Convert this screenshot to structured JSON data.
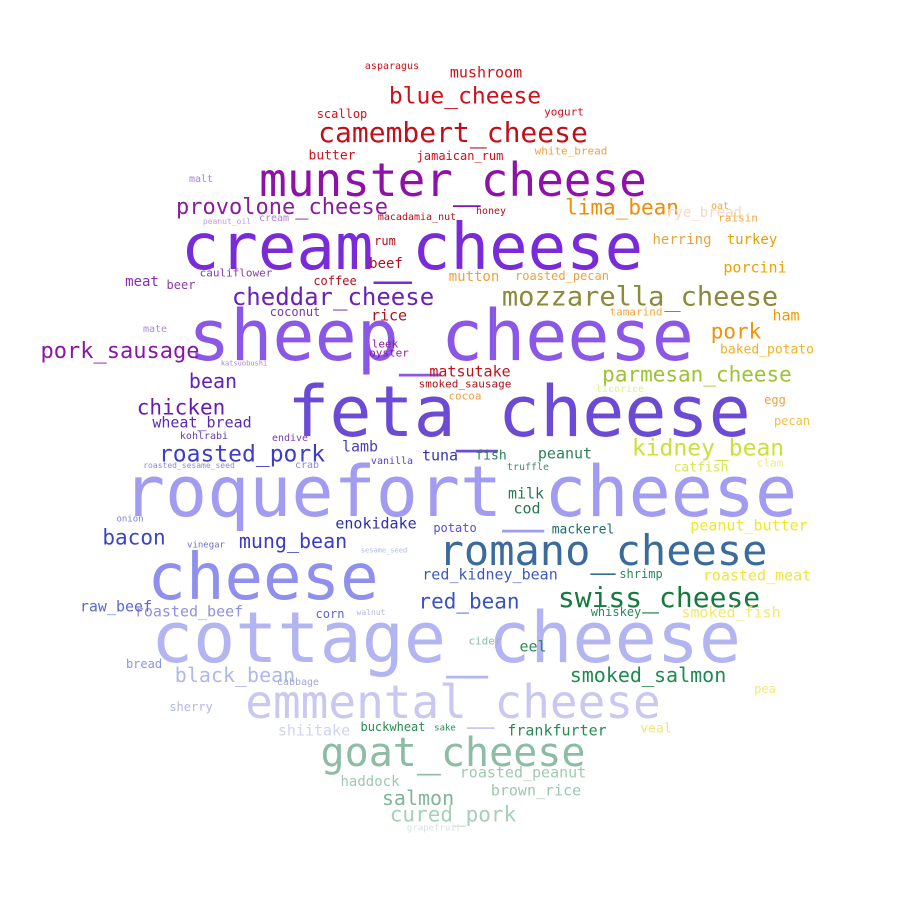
{
  "words": [
    {
      "text": "roquefort_cheese",
      "color": "#a29bf2"
    },
    {
      "text": "cottage_cheese",
      "color": "#b3b4f2"
    },
    {
      "text": "sheep_cheese",
      "color": "#8a57e6"
    },
    {
      "text": "feta_cheese",
      "color": "#6c4bd4"
    },
    {
      "text": "cream_cheese",
      "color": "#7a2bd9"
    },
    {
      "text": "cheese",
      "color": "#8f90ee"
    },
    {
      "text": "munster_cheese",
      "color": "#8e12a8"
    },
    {
      "text": "emmental_cheese",
      "color": "#c8c8f0"
    },
    {
      "text": "romano_cheese",
      "color": "#3a6b9a"
    },
    {
      "text": "goat_cheese",
      "color": "#8cbca4"
    },
    {
      "text": "mozzarella_cheese",
      "color": "#8a8a3a"
    },
    {
      "text": "camembert_cheese",
      "color": "#c2101a"
    },
    {
      "text": "provolone_cheese",
      "color": "#8a1c9e"
    },
    {
      "text": "cheddar_cheese",
      "color": "#6a22b8"
    },
    {
      "text": "swiss_cheese",
      "color": "#157a3f"
    },
    {
      "text": "blue_cheese",
      "color": "#d0101a"
    },
    {
      "text": "parmesan_cheese",
      "color": "#9bc431"
    },
    {
      "text": "kidney_bean",
      "color": "#c9e23a"
    },
    {
      "text": "roasted_pork",
      "color": "#3c3cc8"
    },
    {
      "text": "lima_bean",
      "color": "#f08c00"
    },
    {
      "text": "mung_bean",
      "color": "#3b3bc9"
    },
    {
      "text": "red_bean",
      "color": "#3a52c2"
    },
    {
      "text": "smoked_salmon",
      "color": "#1f8a4f"
    },
    {
      "text": "black_bean",
      "color": "#b0b8e8"
    },
    {
      "text": "pork_sausage",
      "color": "#8a16a8"
    },
    {
      "text": "chicken",
      "color": "#6a1ab2"
    },
    {
      "text": "bean",
      "color": "#6022b8"
    },
    {
      "text": "pork",
      "color": "#f0920a"
    },
    {
      "text": "bacon",
      "color": "#3a46c2"
    },
    {
      "text": "mushroom",
      "color": "#d2101a"
    },
    {
      "text": "wheat_bread",
      "color": "#5a2ab6"
    },
    {
      "text": "red_kidney_bean",
      "color": "#3d59c0"
    },
    {
      "text": "frankfurter",
      "color": "#2a8a56"
    },
    {
      "text": "roasted_peanut",
      "color": "#9fcab0"
    },
    {
      "text": "brown_rice",
      "color": "#9cc8ae"
    },
    {
      "text": "salmon",
      "color": "#7fb698"
    },
    {
      "text": "cured_pork",
      "color": "#a8cfb8"
    },
    {
      "text": "shiitake",
      "color": "#d0d2f2"
    },
    {
      "text": "peanut_butter",
      "color": "#f0e820"
    },
    {
      "text": "roasted_meat",
      "color": "#f2e438"
    },
    {
      "text": "smoked_fish",
      "color": "#f4e86a"
    },
    {
      "text": "roasted_beef",
      "color": "#8f92dc"
    },
    {
      "text": "raw_beef",
      "color": "#5b66d0"
    },
    {
      "text": "enokidake",
      "color": "#2e2ea8"
    },
    {
      "text": "matsutake",
      "color": "#c8101a"
    },
    {
      "text": "porcini",
      "color": "#f0a000"
    },
    {
      "text": "turkey",
      "color": "#e8a000"
    },
    {
      "text": "ham",
      "color": "#f09a00"
    },
    {
      "text": "baked_potato",
      "color": "#f4b020"
    },
    {
      "text": "peanut",
      "color": "#2f7f5a"
    },
    {
      "text": "milk",
      "color": "#247a52"
    },
    {
      "text": "cod",
      "color": "#1f7a4c"
    },
    {
      "text": "tuna",
      "color": "#3434b4"
    },
    {
      "text": "fish",
      "color": "#2c7a5a"
    },
    {
      "text": "lamb",
      "color": "#4a40be"
    },
    {
      "text": "catfish",
      "color": "#d6e84c"
    },
    {
      "text": "mackerel",
      "color": "#1b6e6e"
    },
    {
      "text": "potato",
      "color": "#5c4ec0"
    },
    {
      "text": "eel",
      "color": "#2a8a56"
    },
    {
      "text": "shrimp",
      "color": "#2a8a56"
    },
    {
      "text": "whiskey",
      "color": "#2a8a56"
    },
    {
      "text": "cider",
      "color": "#8cbca4"
    },
    {
      "text": "corn",
      "color": "#5a66cc"
    },
    {
      "text": "bread",
      "color": "#8a96dc"
    },
    {
      "text": "sherry",
      "color": "#b0b8e8"
    },
    {
      "text": "cabbage",
      "color": "#a0a6d8"
    },
    {
      "text": "buckwheat",
      "color": "#2a8a56"
    },
    {
      "text": "sake",
      "color": "#2a8a56"
    },
    {
      "text": "haddock",
      "color": "#9ccab0"
    },
    {
      "text": "veal",
      "color": "#f2e476"
    },
    {
      "text": "pea",
      "color": "#f4e878"
    },
    {
      "text": "herring",
      "color": "#e8a040"
    },
    {
      "text": "rye_bread",
      "color": "#f6d8c0"
    },
    {
      "text": "meat",
      "color": "#8a2ab0"
    },
    {
      "text": "beef",
      "color": "#b4101a"
    },
    {
      "text": "rice",
      "color": "#b0101a"
    },
    {
      "text": "mutton",
      "color": "#f0a040"
    },
    {
      "text": "roasted_pecan",
      "color": "#f0a040"
    },
    {
      "text": "coffee",
      "color": "#b0101a"
    },
    {
      "text": "coconut",
      "color": "#7a3aa8"
    },
    {
      "text": "cauliflower",
      "color": "#8a3aa8"
    },
    {
      "text": "beer",
      "color": "#8a3aa8"
    },
    {
      "text": "mate",
      "color": "#b08ad0"
    },
    {
      "text": "leek",
      "color": "#8a1a9e"
    },
    {
      "text": "oyster",
      "color": "#8a1a9e"
    },
    {
      "text": "smoked_sausage",
      "color": "#b0101a"
    },
    {
      "text": "cocoa",
      "color": "#f0a040"
    },
    {
      "text": "egg",
      "color": "#f0a040"
    },
    {
      "text": "pecan",
      "color": "#f0c040"
    },
    {
      "text": "clam",
      "color": "#f4e878"
    },
    {
      "text": "licorice",
      "color": "#e0f080"
    },
    {
      "text": "tamarind",
      "color": "#f0a840"
    },
    {
      "text": "raisin",
      "color": "#f0a840"
    },
    {
      "text": "oat",
      "color": "#f0a840"
    },
    {
      "text": "honey",
      "color": "#b0101a"
    },
    {
      "text": "rum",
      "color": "#b0101a"
    },
    {
      "text": "cream",
      "color": "#b080d0"
    },
    {
      "text": "macadamia_nut",
      "color": "#b0101a"
    },
    {
      "text": "jamaican_rum",
      "color": "#d0101a"
    },
    {
      "text": "butter",
      "color": "#d0101a"
    },
    {
      "text": "scallop",
      "color": "#d0101a"
    },
    {
      "text": "yogurt",
      "color": "#d0101a"
    },
    {
      "text": "white_bread",
      "color": "#f0a040"
    },
    {
      "text": "asparagus",
      "color": "#d0101a"
    },
    {
      "text": "malt",
      "color": "#b080d0"
    },
    {
      "text": "peanut_oil",
      "color": "#c0a0e0"
    },
    {
      "text": "kohlrabi",
      "color": "#6a3ab0"
    },
    {
      "text": "endive",
      "color": "#7a40b0"
    },
    {
      "text": "crab",
      "color": "#8a8ad0"
    },
    {
      "text": "vanilla",
      "color": "#5a40c0"
    },
    {
      "text": "truffle",
      "color": "#4a8a6a"
    },
    {
      "text": "roasted_sesame_seed",
      "color": "#8a8ad8"
    },
    {
      "text": "onion",
      "color": "#7a80d0"
    },
    {
      "text": "vinegar",
      "color": "#6a70c8"
    },
    {
      "text": "sesame_seed",
      "color": "#b0b8e8"
    },
    {
      "text": "walnut",
      "color": "#b0b8e8"
    },
    {
      "text": "grapefruit",
      "color": "#d8e0e0"
    },
    {
      "text": "katsuobushi",
      "color": "#b080d0"
    }
  ]
}
